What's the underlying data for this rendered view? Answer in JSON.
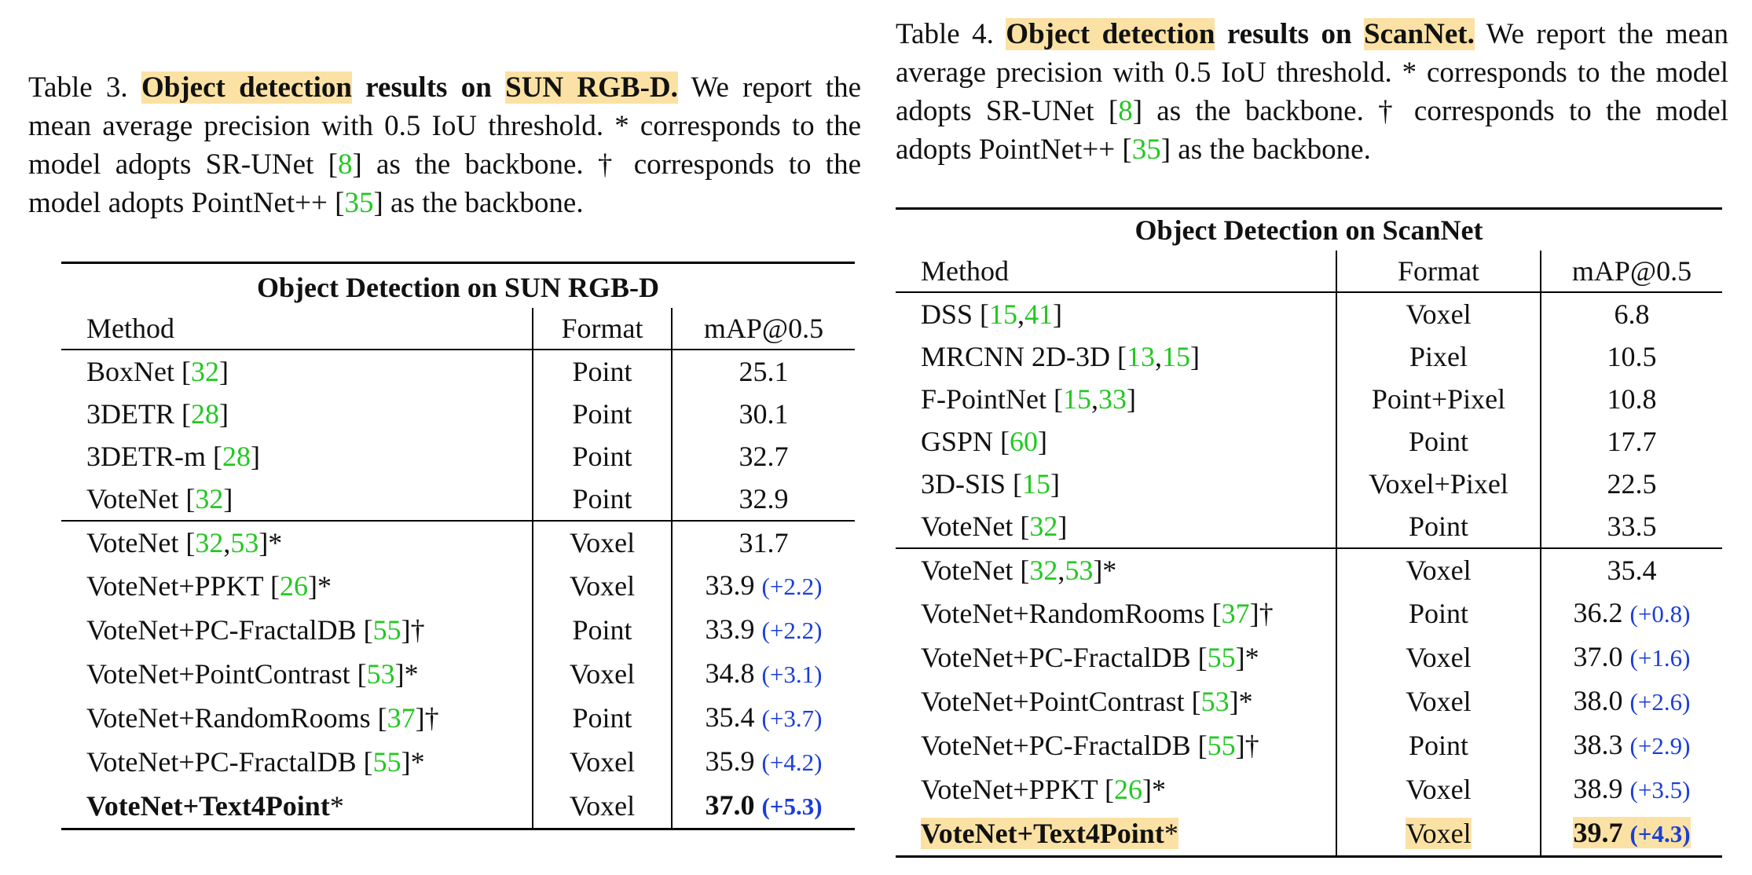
{
  "left": {
    "caption": {
      "label": "Table 3.",
      "hl_a": "Object detection",
      "mid": "results on",
      "hl_b": "SUN RGB-D.",
      "p1": "We report the mean average precision with 0.5 IoU threshold. * corresponds to the model adopts SR-UNet [",
      "ref1": "8",
      "p2": "] as the backbone. † corresponds to the model adopts PointNet++ [",
      "ref2": "35",
      "p3": "] as the backbone."
    },
    "table": {
      "title": "Object Detection on SUN RGB-D",
      "headers": [
        "Method",
        "Format",
        "mAP@0.5"
      ],
      "rows": [
        {
          "name": "BoxNet [",
          "refs": [
            "32"
          ],
          "suffix": "]",
          "format": "Point",
          "map": "25.1",
          "delta": "",
          "group_start": false,
          "bold": false,
          "highlight": false
        },
        {
          "name": "3DETR [",
          "refs": [
            "28"
          ],
          "suffix": "]",
          "format": "Point",
          "map": "30.1",
          "delta": "",
          "group_start": false,
          "bold": false,
          "highlight": false
        },
        {
          "name": "3DETR-m [",
          "refs": [
            "28"
          ],
          "suffix": "]",
          "format": "Point",
          "map": "32.7",
          "delta": "",
          "group_start": false,
          "bold": false,
          "highlight": false
        },
        {
          "name": "VoteNet [",
          "refs": [
            "32"
          ],
          "suffix": "]",
          "format": "Point",
          "map": "32.9",
          "delta": "",
          "group_start": false,
          "bold": false,
          "highlight": false
        },
        {
          "name": "VoteNet [",
          "refs": [
            "32",
            "53"
          ],
          "suffix": "]*",
          "format": "Voxel",
          "map": "31.7",
          "delta": "",
          "group_start": true,
          "bold": false,
          "highlight": false
        },
        {
          "name": "VoteNet+PPKT [",
          "refs": [
            "26"
          ],
          "suffix": "]*",
          "format": "Voxel",
          "map": "33.9",
          "delta": "(+2.2)",
          "group_start": false,
          "bold": false,
          "highlight": false
        },
        {
          "name": "VoteNet+PC-FractalDB [",
          "refs": [
            "55"
          ],
          "suffix": "]†",
          "format": "Point",
          "map": "33.9",
          "delta": "(+2.2)",
          "group_start": false,
          "bold": false,
          "highlight": false
        },
        {
          "name": "VoteNet+PointContrast [",
          "refs": [
            "53"
          ],
          "suffix": "]*",
          "format": "Voxel",
          "map": "34.8",
          "delta": "(+3.1)",
          "group_start": false,
          "bold": false,
          "highlight": false
        },
        {
          "name": "VoteNet+RandomRooms [",
          "refs": [
            "37"
          ],
          "suffix": "]†",
          "format": "Point",
          "map": "35.4",
          "delta": "(+3.7)",
          "group_start": false,
          "bold": false,
          "highlight": false
        },
        {
          "name": "VoteNet+PC-FractalDB [",
          "refs": [
            "55"
          ],
          "suffix": "]*",
          "format": "Voxel",
          "map": "35.9",
          "delta": "(+4.2)",
          "group_start": false,
          "bold": false,
          "highlight": false
        },
        {
          "name": "VoteNet+Text4Point",
          "refs": [],
          "suffix": "*",
          "format": "Voxel",
          "map": "37.0",
          "delta": "(+5.3)",
          "group_start": false,
          "bold": true,
          "highlight": false
        }
      ]
    }
  },
  "right": {
    "caption": {
      "label": "Table 4.",
      "hl_a": "Object detection",
      "mid": "results on",
      "hl_b": "ScanNet.",
      "p1": "We report the mean average precision with 0.5 IoU threshold. * corresponds to the model adopts SR-UNet [",
      "ref1": "8",
      "p2": "] as the backbone. † corresponds to the model adopts PointNet++ [",
      "ref2": "35",
      "p3": "] as the backbone."
    },
    "table": {
      "title": "Object Detection on ScanNet",
      "headers": [
        "Method",
        "Format",
        "mAP@0.5"
      ],
      "rows": [
        {
          "name": "DSS [",
          "refs": [
            "15",
            "41"
          ],
          "suffix": "]",
          "format": "Voxel",
          "map": "6.8",
          "delta": "",
          "group_start": false,
          "bold": false,
          "highlight": false
        },
        {
          "name": "MRCNN 2D-3D [",
          "refs": [
            "13",
            "15"
          ],
          "suffix": "]",
          "format": "Pixel",
          "map": "10.5",
          "delta": "",
          "group_start": false,
          "bold": false,
          "highlight": false
        },
        {
          "name": "F-PointNet [",
          "refs": [
            "15",
            "33"
          ],
          "suffix": "]",
          "format": "Point+Pixel",
          "map": "10.8",
          "delta": "",
          "group_start": false,
          "bold": false,
          "highlight": false
        },
        {
          "name": "GSPN [",
          "refs": [
            "60"
          ],
          "suffix": "]",
          "format": "Point",
          "map": "17.7",
          "delta": "",
          "group_start": false,
          "bold": false,
          "highlight": false
        },
        {
          "name": "3D-SIS [",
          "refs": [
            "15"
          ],
          "suffix": "]",
          "format": "Voxel+Pixel",
          "map": "22.5",
          "delta": "",
          "group_start": false,
          "bold": false,
          "highlight": false
        },
        {
          "name": "VoteNet [",
          "refs": [
            "32"
          ],
          "suffix": "]",
          "format": "Point",
          "map": "33.5",
          "delta": "",
          "group_start": false,
          "bold": false,
          "highlight": false
        },
        {
          "name": "VoteNet [",
          "refs": [
            "32",
            "53"
          ],
          "suffix": "]*",
          "format": "Voxel",
          "map": "35.4",
          "delta": "",
          "group_start": true,
          "bold": false,
          "highlight": false
        },
        {
          "name": "VoteNet+RandomRooms [",
          "refs": [
            "37"
          ],
          "suffix": "]†",
          "format": "Point",
          "map": "36.2",
          "delta": "(+0.8)",
          "group_start": false,
          "bold": false,
          "highlight": false
        },
        {
          "name": "VoteNet+PC-FractalDB [",
          "refs": [
            "55"
          ],
          "suffix": "]*",
          "format": "Voxel",
          "map": "37.0",
          "delta": "(+1.6)",
          "group_start": false,
          "bold": false,
          "highlight": false
        },
        {
          "name": "VoteNet+PointContrast [",
          "refs": [
            "53"
          ],
          "suffix": "]*",
          "format": "Voxel",
          "map": "38.0",
          "delta": "(+2.6)",
          "group_start": false,
          "bold": false,
          "highlight": false
        },
        {
          "name": "VoteNet+PC-FractalDB [",
          "refs": [
            "55"
          ],
          "suffix": "]†",
          "format": "Point",
          "map": "38.3",
          "delta": "(+2.9)",
          "group_start": false,
          "bold": false,
          "highlight": false
        },
        {
          "name": "VoteNet+PPKT [",
          "refs": [
            "26"
          ],
          "suffix": "]*",
          "format": "Voxel",
          "map": "38.9",
          "delta": "(+3.5)",
          "group_start": false,
          "bold": false,
          "highlight": false
        },
        {
          "name": "VoteNet+Text4Point",
          "refs": [],
          "suffix": "*",
          "format": "Voxel",
          "map": "39.7",
          "delta": "(+4.3)",
          "group_start": false,
          "bold": true,
          "highlight": true
        }
      ]
    }
  },
  "colors": {
    "highlight": "#fbe2a4",
    "reference": "#22c822",
    "delta": "#1a3ed8"
  }
}
